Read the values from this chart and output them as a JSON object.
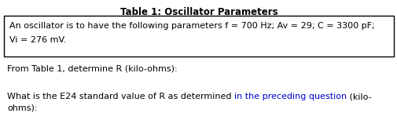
{
  "title": "Table 1: Oscillator Parameters",
  "box_text_line1": "An oscillator is to have the following parameters f = 700 Hz; Av = 29; C = 3300 pF;",
  "box_text_line2": "Vi = 276 mV.",
  "question1": "From Table 1, determine R (kilo-ohms):",
  "q2_part1": "What is the E24 standard value of R as determined ",
  "q2_part2": "in the preceding question",
  "q2_part3": " (kilo-",
  "q2_line2": "ohms):",
  "title_color": "#000000",
  "body_color": "#000000",
  "highlight_color": "#0000cc",
  "background_color": "#ffffff",
  "box_border_color": "#000000",
  "title_fontsize": 8.5,
  "body_fontsize": 8.0,
  "fig_width": 5.06,
  "fig_height": 1.72,
  "dpi": 100
}
